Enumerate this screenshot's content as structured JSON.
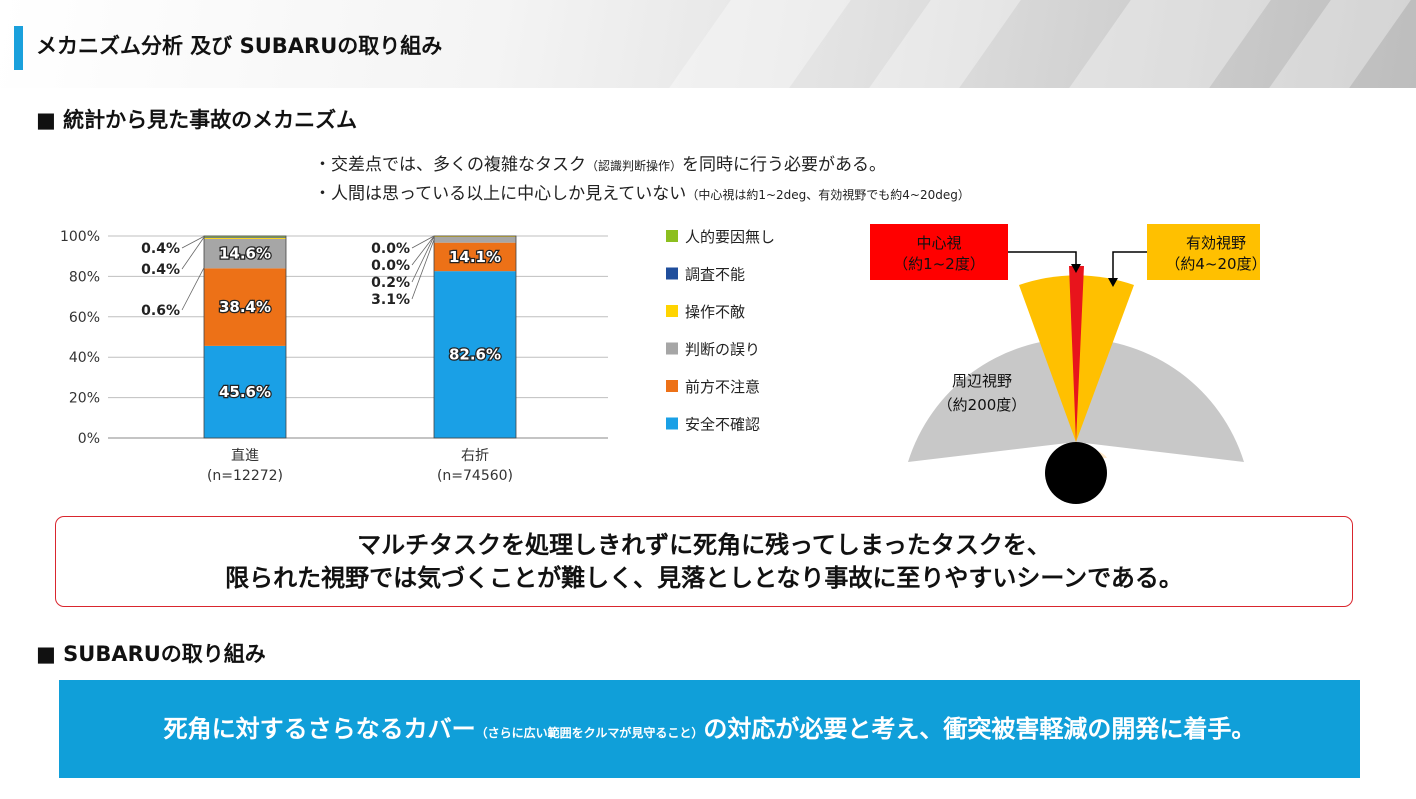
{
  "header": {
    "title": "メカニズム分析 及び SUBARUの取り組み"
  },
  "section1": {
    "heading": "■ 統計から見た事故のメカニズム"
  },
  "bullets": [
    {
      "main": "・交差点では、多くの複雑なタスク",
      "small": "（認識判断操作）",
      "rest": "を同時に行う必要がある。"
    },
    {
      "main": "・人間は思っている以上に中心しか見えていない",
      "small": "（中心視は約1~2deg、有効視野でも約4~20deg）",
      "rest": ""
    }
  ],
  "chart_data": {
    "type": "bar",
    "stacked": true,
    "categories": [
      "直進",
      "右折"
    ],
    "category_sublabels": [
      "(n=12272)",
      "(n=74560)"
    ],
    "ylim": [
      0,
      100
    ],
    "yticks": [
      "0%",
      "20%",
      "40%",
      "60%",
      "80%",
      "100%"
    ],
    "series": [
      {
        "name": "安全不確認",
        "values": [
          45.6,
          82.6
        ],
        "labels": [
          "45.6%",
          "82.6%"
        ],
        "color": "#1aa0e6"
      },
      {
        "name": "前方不注意",
        "values": [
          38.4,
          14.1
        ],
        "labels": [
          "38.4%",
          "14.1%"
        ],
        "color": "#ed7117"
      },
      {
        "name": "判断の誤り",
        "values": [
          14.6,
          3.1
        ],
        "labels": [
          "14.6%",
          "3.1%"
        ],
        "color": "#a6a6a6"
      },
      {
        "name": "操作不敵",
        "values": [
          0.6,
          0.2
        ],
        "labels": [
          "0.6%",
          "0.2%"
        ],
        "color": "#ffd400"
      },
      {
        "name": "調査不能",
        "values": [
          0.4,
          0.0
        ],
        "labels": [
          "0.4%",
          "0.0%"
        ],
        "color": "#1f4e9c"
      },
      {
        "name": "人的要因無し",
        "values": [
          0.4,
          0.0
        ],
        "labels": [
          "0.4%",
          "0.0%"
        ],
        "color": "#8cbf1f"
      }
    ],
    "legend_order": [
      "人的要因無し",
      "調査不能",
      "操作不敵",
      "判断の誤り",
      "前方不注意",
      "安全不確認"
    ],
    "legend_position": "right",
    "grid": true
  },
  "vision": {
    "central_label_1": "中心視",
    "central_label_2": "（約1~2度）",
    "effective_label_1": "有効視野",
    "effective_label_2": "（約4~20度）",
    "peripheral_label_1": "周辺視野",
    "peripheral_label_2": "（約200度）",
    "colors": {
      "central": "#e8141c",
      "effective": "#ffc000",
      "peripheral": "#c8c8c8",
      "head": "#000000",
      "face": "#fde9cc"
    }
  },
  "callout": {
    "line1": "マルチタスクを処理しきれずに死角に残ってしまったタスクを、",
    "line2": "限られた視野では気づくことが難しく、見落としとなり事故に至りやすいシーンである。"
  },
  "section2": {
    "heading": "■ SUBARUの取り組み"
  },
  "bluebox": {
    "main": "死角に対するさらなるカバー",
    "small": "（さらに広い範囲をクルマが見守ること）",
    "rest": "の対応が必要と考え、衝突被害軽減の開発に着手。"
  }
}
